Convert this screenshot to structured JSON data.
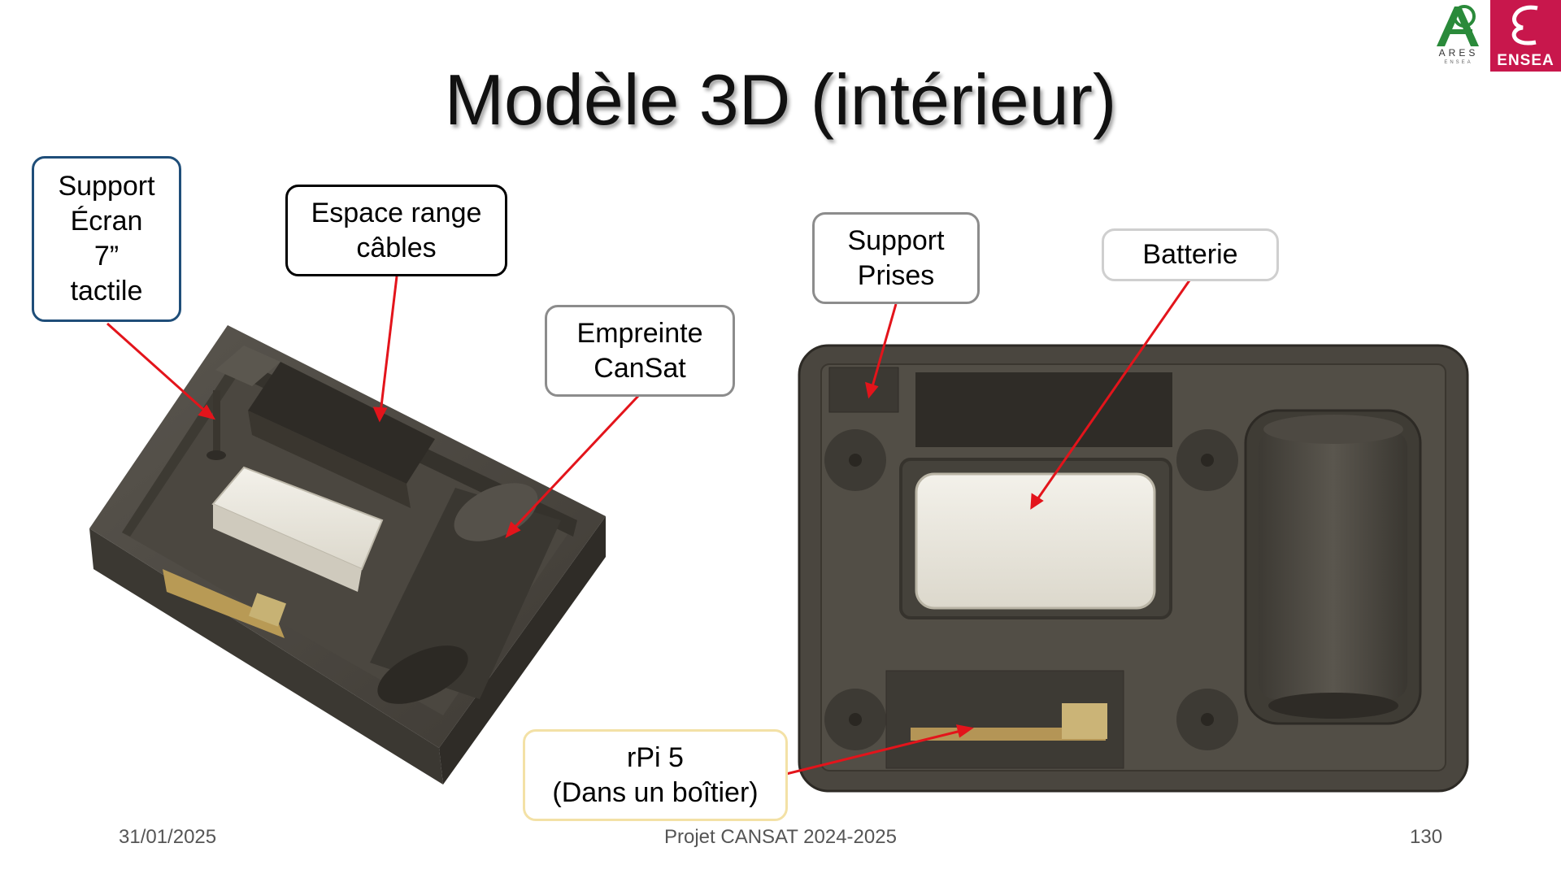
{
  "slide": {
    "title": "Modèle 3D (intérieur)",
    "footer": {
      "date": "31/01/2025",
      "project": "Projet CANSAT 2024-2025",
      "page": "130"
    }
  },
  "logos": {
    "ares": "ARES",
    "ares_sub": "ENSEA",
    "ensea": "ENSEA"
  },
  "callouts": {
    "support_ecran": [
      "Support",
      "Écran",
      "7”",
      "tactile"
    ],
    "espace_range": [
      "Espace range",
      "câbles"
    ],
    "empreinte": [
      "Empreinte",
      "CanSat"
    ],
    "support_prises": [
      "Support",
      "Prises"
    ],
    "batterie": [
      "Batterie"
    ],
    "rpi": [
      "rPi 5",
      "(Dans un boîtier)"
    ]
  },
  "colors": {
    "accent_arrow": "#e3141b",
    "callout_blue": "#1f4e79",
    "callout_grey": "#8c8c8c",
    "callout_yellow": "#f3e1a6",
    "model_body": "#4a463f",
    "battery": "#e9e6dc",
    "ensea_red": "#c8174c",
    "ares_green": "#2a8a3a"
  }
}
